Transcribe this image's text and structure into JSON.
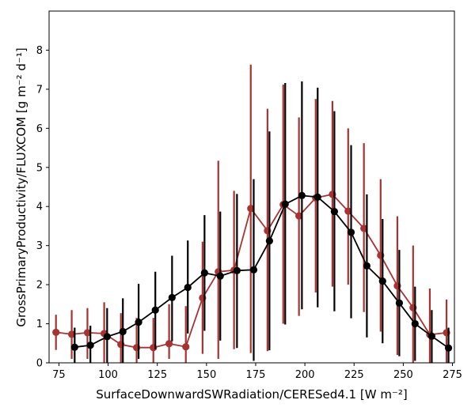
{
  "chart_data": {
    "type": "scatter",
    "title": "",
    "xlabel": "SurfaceDownwardSWRadiation/CERESed4.1 [W m⁻²]",
    "ylabel": "GrossPrimaryProductivity/FLUXCOM [g m⁻² d⁻¹]",
    "xlim": [
      70,
      276
    ],
    "ylim": [
      0,
      9
    ],
    "xticks": [
      75,
      100,
      125,
      150,
      175,
      200,
      225,
      250,
      275
    ],
    "yticks": [
      0,
      1,
      2,
      3,
      4,
      5,
      6,
      7,
      8
    ],
    "grid": false,
    "legend": "none",
    "series": [
      {
        "color": "#a83232",
        "x": [
          73.5,
          81.5,
          89.5,
          98.0,
          106.5,
          114.5,
          123.0,
          131.0,
          139.5,
          148.0,
          156.0,
          164.0,
          172.5,
          181.0,
          189.0,
          197.0,
          205.5,
          214.0,
          222.0,
          230.0,
          238.5,
          247.0,
          255.0,
          263.5,
          272.0
        ],
        "y": [
          0.78,
          0.73,
          0.77,
          0.75,
          0.47,
          0.39,
          0.39,
          0.49,
          0.41,
          1.66,
          2.33,
          2.37,
          3.95,
          3.38,
          4.05,
          3.76,
          4.22,
          4.31,
          3.88,
          3.44,
          2.75,
          1.97,
          1.41,
          0.72,
          0.77
        ],
        "ylow": [
          0.33,
          0.1,
          0.1,
          0.0,
          0.0,
          0.0,
          0.0,
          0.1,
          0.0,
          0.23,
          0.1,
          0.35,
          0.25,
          0.3,
          1.0,
          1.2,
          1.8,
          1.95,
          2.0,
          1.3,
          0.8,
          0.2,
          0.0,
          0.0,
          0.0
        ],
        "yhigh": [
          1.23,
          1.35,
          1.4,
          1.55,
          1.27,
          1.15,
          1.15,
          1.5,
          1.45,
          3.1,
          5.17,
          4.4,
          7.63,
          6.5,
          7.12,
          6.28,
          6.75,
          6.7,
          6.0,
          5.62,
          4.7,
          3.75,
          3.0,
          1.9,
          1.62
        ]
      },
      {
        "color": "#000000",
        "x": [
          83.0,
          91.0,
          99.5,
          107.5,
          115.5,
          124.0,
          132.5,
          140.5,
          149.0,
          157.0,
          165.5,
          174.0,
          182.0,
          190.0,
          198.5,
          206.5,
          215.0,
          223.5,
          231.5,
          239.5,
          248.0,
          256.0,
          264.5,
          273.0
        ],
        "y": [
          0.4,
          0.45,
          0.67,
          0.8,
          1.04,
          1.35,
          1.67,
          1.93,
          2.3,
          2.22,
          2.36,
          2.38,
          3.12,
          4.06,
          4.28,
          4.24,
          3.87,
          3.34,
          2.48,
          2.09,
          1.53,
          1.0,
          0.68,
          0.38
        ],
        "ylow": [
          0.0,
          0.0,
          0.0,
          0.0,
          0.1,
          0.35,
          0.55,
          0.75,
          0.82,
          0.57,
          0.38,
          0.05,
          0.32,
          0.98,
          1.37,
          1.42,
          1.32,
          1.14,
          0.65,
          0.5,
          0.17,
          0.05,
          0.0,
          0.0
        ],
        "yhigh": [
          0.9,
          0.95,
          1.4,
          1.65,
          2.02,
          2.33,
          2.74,
          3.13,
          3.78,
          3.87,
          4.32,
          4.7,
          5.92,
          7.16,
          7.2,
          7.04,
          6.44,
          5.57,
          4.31,
          3.68,
          2.89,
          1.95,
          1.35,
          0.9
        ]
      }
    ]
  }
}
